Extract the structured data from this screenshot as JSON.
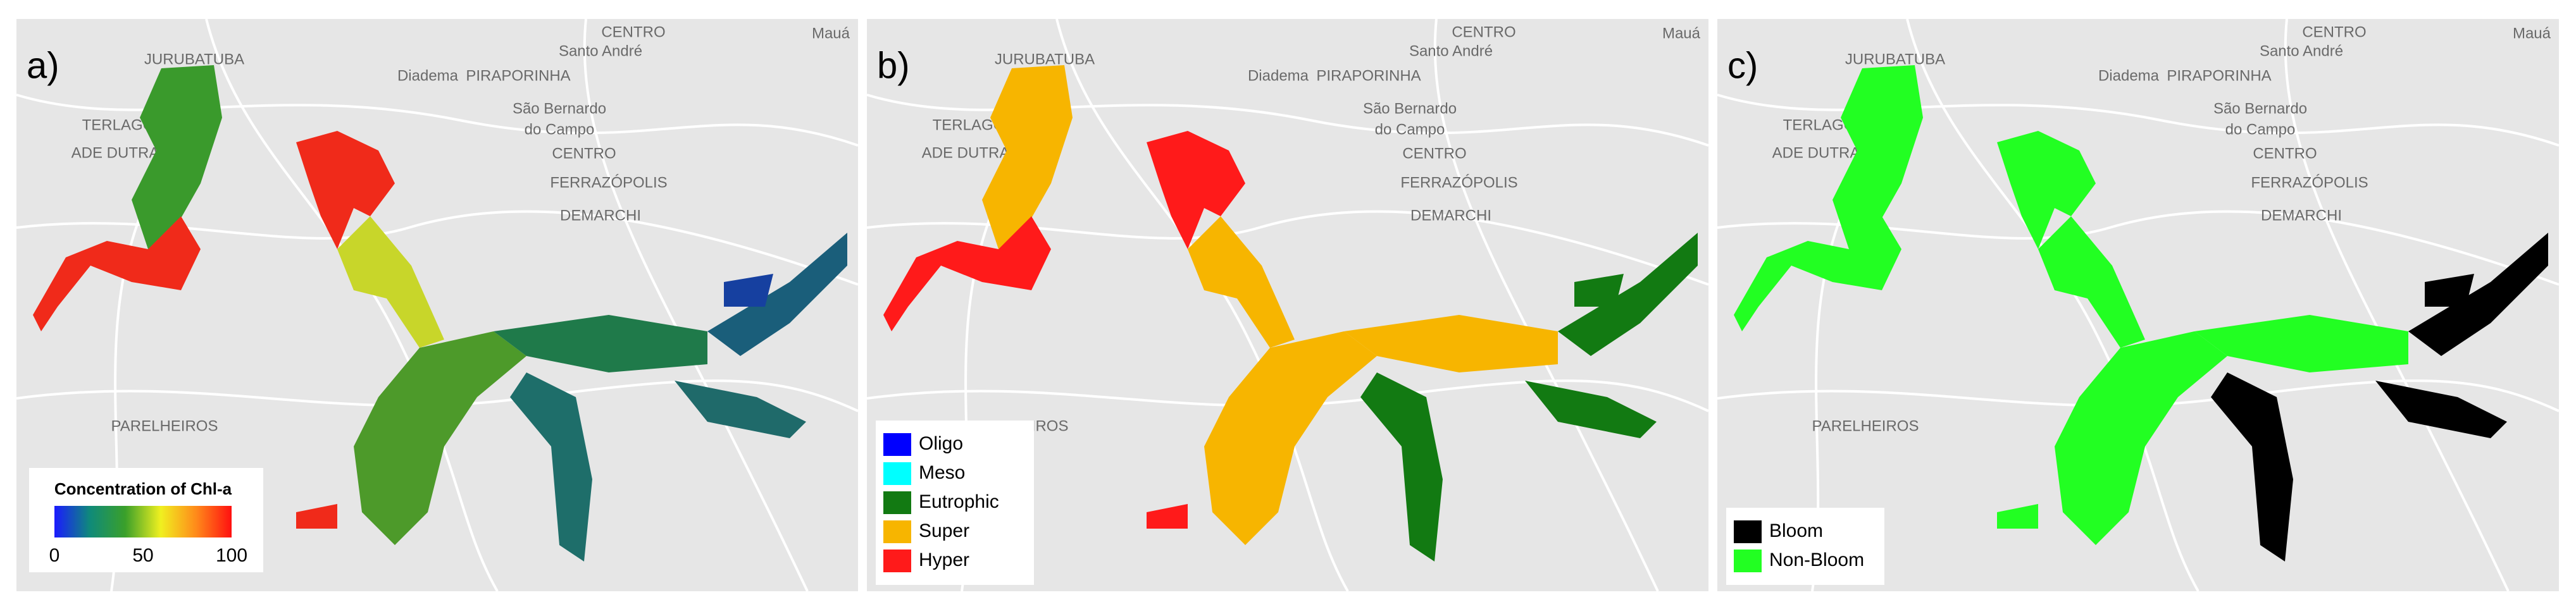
{
  "panels": [
    {
      "label": "a)",
      "legend": {
        "title": "Concentration of Chl-a",
        "ticks": [
          0,
          50,
          100
        ],
        "colors": [
          "#1a1aff",
          "#0f8a7a",
          "#3aa02a",
          "#f0f020",
          "#ff8a1a",
          "#ff1010"
        ]
      }
    },
    {
      "label": "b)",
      "legend": {
        "items": [
          {
            "name": "Oligo",
            "color": "#0000ff"
          },
          {
            "name": "Meso",
            "color": "#00ffff"
          },
          {
            "name": "Eutrophic",
            "color": "#127a12"
          },
          {
            "name": "Super",
            "color": "#f7b500"
          },
          {
            "name": "Hyper",
            "color": "#ff1a1a"
          }
        ]
      }
    },
    {
      "label": "c)",
      "legend": {
        "items": [
          {
            "name": "Bloom",
            "color": "#000000"
          },
          {
            "name": "Non-Bloom",
            "color": "#22ff22"
          }
        ]
      }
    }
  ],
  "basemap": {
    "labels": [
      "CENTRO",
      "Mauá",
      "JURUBATUBA",
      "Diadema",
      "PIRAPORINHA",
      "Santo André",
      "São Bernardo",
      "do Campo",
      "CENTRO",
      "FERRAZÓPOLIS",
      "DEMARCHI",
      "PARELHEIROS",
      "TERLAGOS",
      "ADE DUTRA"
    ]
  }
}
